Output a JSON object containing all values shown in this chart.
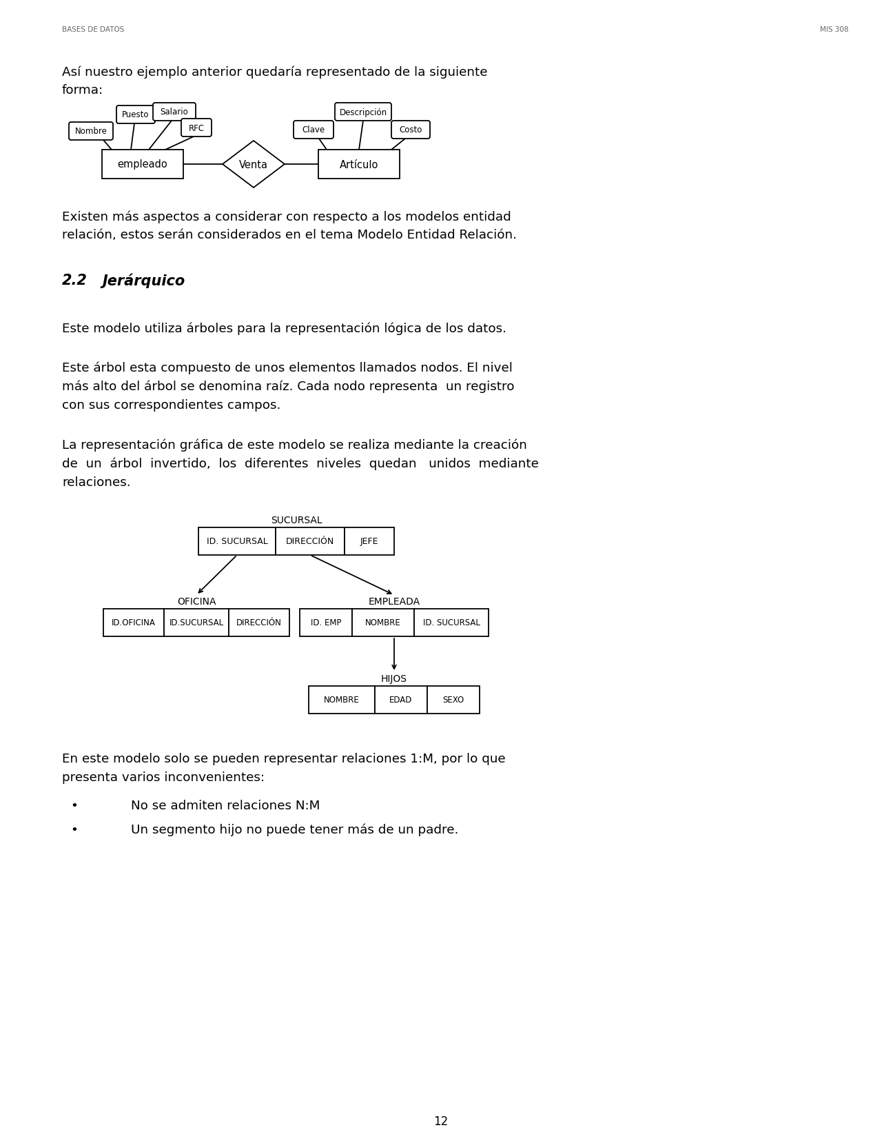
{
  "header_left": "BASES DE DATOS",
  "header_right": "MIS 308",
  "page_number": "12",
  "bg_color": "#ffffff",
  "text_color": "#000000",
  "para1_line1": "Así nuestro ejemplo anterior quedaría representado de la siguiente",
  "para1_line2": "forma:",
  "para2_line1": "Existen más aspectos a considerar con respecto a los modelos entidad",
  "para2_line2": "relación, estos serán considerados en el tema Modelo Entidad Relación.",
  "section_heading_num": "2.2",
  "section_heading_text": "Jerárquico",
  "para3": "Este modelo utiliza árboles para la representación lógica de los datos.",
  "para4_line1": "Este árbol esta compuesto de unos elementos llamados nodos. El nivel",
  "para4_line2": "más alto del árbol se denomina raíz. Cada nodo representa  un registro",
  "para4_line3": "con sus correspondientes campos.",
  "para5_line1": "La representación gráfica de este modelo se realiza mediante la creación",
  "para5_line2": "de  un  árbol  invertido,  los  diferentes  niveles  quedan   unidos  mediante",
  "para5_line3": "relaciones.",
  "para6_line1": "En este modelo solo se pueden representar relaciones 1:M, por lo que",
  "para6_line2": "presenta varios inconvenientes:",
  "bullet1": "No se admiten relaciones N:M",
  "bullet2": "Un segmento hijo no puede tener más de un padre."
}
